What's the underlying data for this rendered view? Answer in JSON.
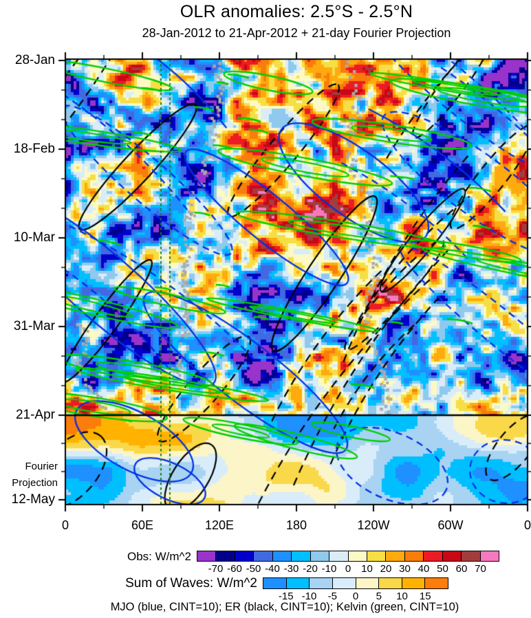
{
  "chart_data": {
    "type": "heatmap",
    "title": "OLR anomalies: 2.5°S - 2.5°N",
    "subtitle": "28-Jan-2012 to 21-Apr-2012 + 21-day Fourier Projection",
    "x_axis": {
      "tick_labels": [
        "0",
        "60E",
        "120E",
        "180",
        "120W",
        "60W",
        "0"
      ],
      "minor_ticks_between_major": 1
    },
    "y_axis": {
      "tick_labels": [
        "28-Jan",
        "18-Feb",
        "10-Mar",
        "31-Mar",
        "21-Apr",
        "12-May"
      ],
      "minor_ticks_between_major": 2,
      "direction": "time-increases-downward"
    },
    "annotations": {
      "left_label_line1": "Fourier",
      "left_label_line2": "Projection",
      "observation_end_tick": "21-Apr"
    },
    "colorbars": [
      {
        "label": "Obs: W/m^2",
        "tick_labels": [
          "-70",
          "-60",
          "-50",
          "-40",
          "-30",
          "-20",
          "-10",
          "0",
          "10",
          "20",
          "30",
          "40",
          "50",
          "60",
          "70"
        ],
        "colors": [
          "#9933CC",
          "#00008B",
          "#0000CD",
          "#4169E1",
          "#1E90FF",
          "#00BFFF",
          "#8FC9EE",
          "#D9EDF9",
          "#FDF9C4",
          "#F6DE45",
          "#FFAA0E",
          "#F97D0B",
          "#ED1B24",
          "#C80815",
          "#A13D3D",
          "#F878C0"
        ],
        "level_step": 10
      },
      {
        "label": "Sum of Waves: W/m^2",
        "tick_labels": [
          "-15",
          "-10",
          "-5",
          "0",
          "5",
          "10",
          "15"
        ],
        "colors": [
          "#1E90FF",
          "#00BFFF",
          "#A8D3F2",
          "#D9ECFA",
          "#FCF5C8",
          "#F9D84A",
          "#FFB300",
          "#FB7D0B"
        ],
        "level_step": 5
      }
    ],
    "caption": "MJO (blue, CINT=10); ER (black, CINT=10); Kelvin (green, CINT=10)",
    "overlays": {
      "mjo_contour_color": "#0030E6",
      "er_contour_color": "#000000",
      "kelvin_contour_color": "#00CE00",
      "missing_data_stripe_color": "#ABABAB",
      "reference_dashed_line_color": "#1C7A1C",
      "divider_line_color": "#000000"
    }
  }
}
